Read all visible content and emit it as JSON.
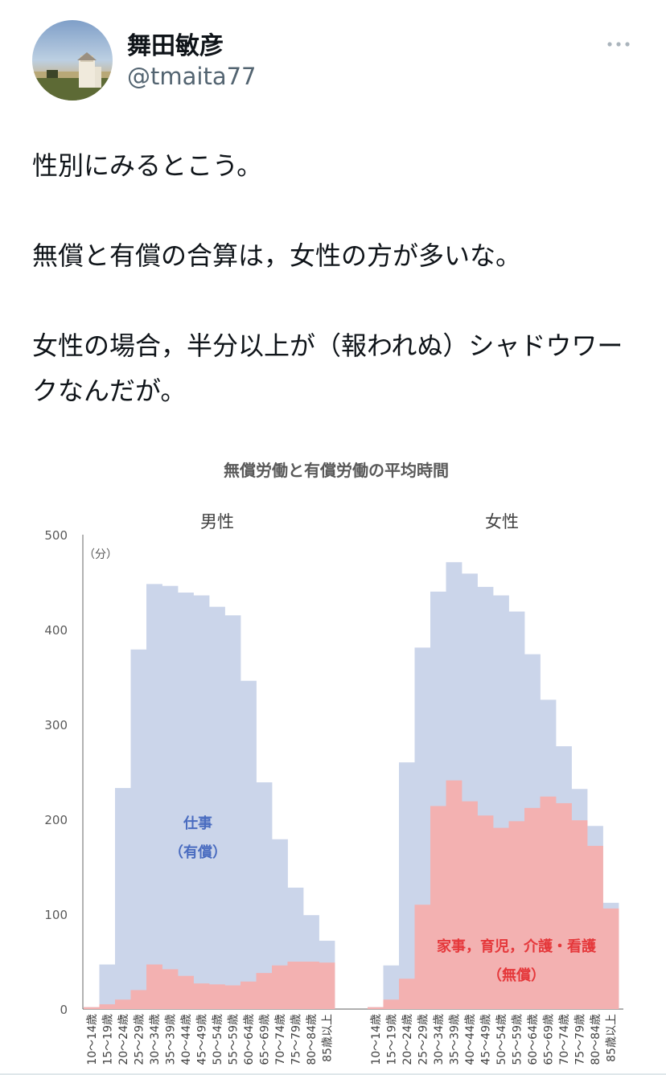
{
  "author": {
    "name": "舞田敏彦",
    "handle": "@tmaita77"
  },
  "tweet": {
    "paragraphs": [
      "性別にみるとこう。",
      "無償と有償の合算は，女性の方が多いな。",
      "女性の場合，半分以上が（報われぬ）シャドウワークなんだが。"
    ]
  },
  "icons": {
    "more": "more-horizontal-icon"
  },
  "colors": {
    "paid": "#cbd5ea",
    "unpaid": "#f3b1b1",
    "paid_label": "#4a6cc0",
    "unpaid_label": "#e5383b"
  },
  "chart_data": {
    "type": "bar",
    "title": "無償労働と有償労働の平均時間",
    "unit_label": "（分）",
    "ylim": [
      0,
      500
    ],
    "yticks": [
      0,
      100,
      200,
      300,
      400,
      500
    ],
    "categories": [
      "10～14歳",
      "15～19歳",
      "20～24歳",
      "25～29歳",
      "30～34歳",
      "35～39歳",
      "40～44歳",
      "45～49歳",
      "50～54歳",
      "55～59歳",
      "60～64歳",
      "65～69歳",
      "70～74歳",
      "75～79歳",
      "80～84歳",
      "85歳以上"
    ],
    "panels": [
      {
        "label": "男性",
        "series": [
          {
            "name": "仕事（有償）",
            "values": [
              2,
              47,
              233,
              379,
              448,
              446,
              439,
              436,
              424,
              415,
              346,
              239,
              179,
              128,
              99,
              72
            ]
          },
          {
            "name": "家事，育児，介護・看護（無償）",
            "values": [
              2,
              5,
              10,
              20,
              47,
              42,
              35,
              27,
              26,
              25,
              29,
              38,
              46,
              50,
              50,
              49
            ]
          }
        ]
      },
      {
        "label": "女性",
        "series": [
          {
            "name": "仕事（有償）",
            "values": [
              2,
              46,
              260,
              381,
              440,
              471,
              459,
              445,
              436,
              419,
              374,
              326,
              277,
              232,
              193,
              112
            ]
          },
          {
            "name": "家事，育児，介護・看護（無償）",
            "values": [
              2,
              10,
              32,
              110,
              214,
              241,
              219,
              204,
              191,
              198,
              212,
              224,
              217,
              199,
              172,
              106
            ]
          }
        ]
      }
    ],
    "annotations": {
      "paid_line1": "仕事",
      "paid_line2": "（有償）",
      "unpaid_line1": "家事，育児，介護・看護",
      "unpaid_line2": "（無償）"
    }
  }
}
